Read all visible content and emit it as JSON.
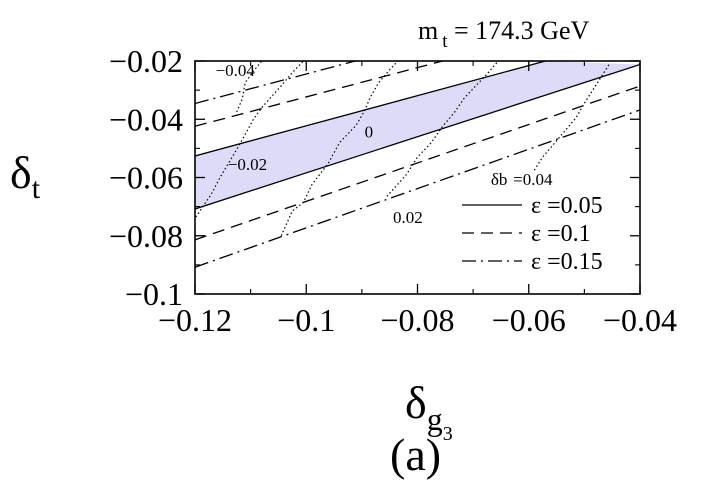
{
  "chart_data": {
    "type": "line",
    "panel_label": "(a)",
    "annotation": "m t = 174.3 GeV",
    "annotation_parts": {
      "m": "m",
      "sub": "t",
      "rest": "= 174.3 GeV"
    },
    "xlabel": "δg3",
    "ylabel": "δt",
    "xlim": [
      -0.12,
      -0.04
    ],
    "ylim": [
      -0.1,
      -0.02
    ],
    "xticks": [
      -0.12,
      -0.1,
      -0.08,
      -0.06,
      -0.04
    ],
    "xtick_labels": [
      "−0.12",
      "−0.1",
      "−0.08",
      "−0.06",
      "−0.04"
    ],
    "yticks": [
      -0.1,
      -0.08,
      -0.06,
      -0.04,
      -0.02
    ],
    "ytick_labels": [
      "−0.1",
      "−0.08",
      "−0.06",
      "−0.04",
      "−0.02"
    ],
    "grid": false,
    "legend_position": "right, inside plot",
    "legend": [
      {
        "label": "ε =0.05",
        "style": "solid"
      },
      {
        "label": "ε =0.1",
        "style": "dashed"
      },
      {
        "label": "ε =0.15",
        "style": "dashdot"
      }
    ],
    "allowed_band": {
      "fill": "#dcdcf8",
      "lower": [
        [
          -0.12,
          -0.0708
        ],
        [
          -0.04,
          -0.0212
        ]
      ],
      "upper": [
        [
          -0.12,
          -0.0526
        ],
        [
          -0.057,
          -0.02
        ]
      ]
    },
    "series": [
      {
        "style": "solid",
        "points": [
          [
            -0.12,
            -0.0526
          ],
          [
            -0.057,
            -0.02
          ]
        ]
      },
      {
        "style": "solid",
        "points": [
          [
            -0.12,
            -0.0708
          ],
          [
            -0.04,
            -0.0212
          ]
        ]
      },
      {
        "style": "dashed",
        "points": [
          [
            -0.12,
            -0.0424
          ],
          [
            -0.0755,
            -0.02
          ]
        ]
      },
      {
        "style": "dashed",
        "points": [
          [
            -0.12,
            -0.0814
          ],
          [
            -0.04,
            -0.0286
          ]
        ]
      },
      {
        "style": "dashdot",
        "points": [
          [
            -0.12,
            -0.0346
          ],
          [
            -0.0912,
            -0.02
          ]
        ]
      },
      {
        "style": "dashdot",
        "points": [
          [
            -0.12,
            -0.0908
          ],
          [
            -0.04,
            -0.0368
          ]
        ]
      }
    ],
    "contours": [
      {
        "label": "−0.04",
        "points": [
          [
            -0.1125,
            -0.0375
          ],
          [
            -0.1115,
            -0.033
          ],
          [
            -0.111,
            -0.0275
          ],
          [
            -0.1095,
            -0.0235
          ],
          [
            -0.108,
            -0.02
          ]
        ]
      },
      {
        "label": "−0.02",
        "points": [
          [
            -0.1275,
            -0.1
          ],
          [
            -0.1225,
            -0.0815
          ],
          [
            -0.12,
            -0.074
          ],
          [
            -0.117,
            -0.0655
          ],
          [
            -0.1155,
            -0.06
          ],
          [
            -0.113,
            -0.052
          ],
          [
            -0.1115,
            -0.047
          ],
          [
            -0.1095,
            -0.04
          ],
          [
            -0.108,
            -0.036
          ],
          [
            -0.1045,
            -0.0285
          ],
          [
            -0.1025,
            -0.024
          ],
          [
            -0.1005,
            -0.02
          ]
        ]
      },
      {
        "label": "0",
        "points": [
          [
            -0.1045,
            -0.08
          ],
          [
            -0.1025,
            -0.0715
          ],
          [
            -0.1005,
            -0.0685
          ],
          [
            -0.099,
            -0.0625
          ],
          [
            -0.096,
            -0.055
          ],
          [
            -0.094,
            -0.048
          ],
          [
            -0.091,
            -0.042
          ],
          [
            -0.0895,
            -0.037
          ],
          [
            -0.0885,
            -0.0325
          ],
          [
            -0.087,
            -0.0275
          ],
          [
            -0.085,
            -0.023
          ],
          [
            -0.0835,
            -0.02
          ]
        ]
      },
      {
        "label": "0.02",
        "points": [
          [
            -0.0855,
            -0.0665
          ],
          [
            -0.082,
            -0.059
          ],
          [
            -0.08,
            -0.053
          ],
          [
            -0.0775,
            -0.048
          ],
          [
            -0.0755,
            -0.0425
          ],
          [
            -0.0735,
            -0.038
          ],
          [
            -0.0715,
            -0.0325
          ],
          [
            -0.0695,
            -0.0285
          ],
          [
            -0.0675,
            -0.0245
          ],
          [
            -0.0655,
            -0.02
          ]
        ]
      },
      {
        "label": "δb=0.04",
        "points": [
          [
            -0.059,
            -0.0575
          ],
          [
            -0.0575,
            -0.053
          ],
          [
            -0.0555,
            -0.0485
          ],
          [
            -0.0535,
            -0.044
          ],
          [
            -0.0515,
            -0.0395
          ],
          [
            -0.05,
            -0.0345
          ],
          [
            -0.0485,
            -0.03
          ],
          [
            -0.047,
            -0.0255
          ],
          [
            -0.0455,
            -0.021
          ]
        ]
      }
    ],
    "contour_labels": [
      {
        "text": "−0.04",
        "x": -0.1163,
        "y": -0.0251
      },
      {
        "text": "−0.02",
        "x": -0.1141,
        "y": -0.0574
      },
      {
        "text": "0",
        "x": -0.0895,
        "y": -0.0463
      },
      {
        "text": "0.02",
        "x": -0.0844,
        "y": -0.0756
      },
      {
        "text": "δb",
        "x": -0.0668,
        "y": -0.0626
      },
      {
        "text": "=0.04",
        "x": -0.0628,
        "y": -0.0626
      }
    ]
  }
}
